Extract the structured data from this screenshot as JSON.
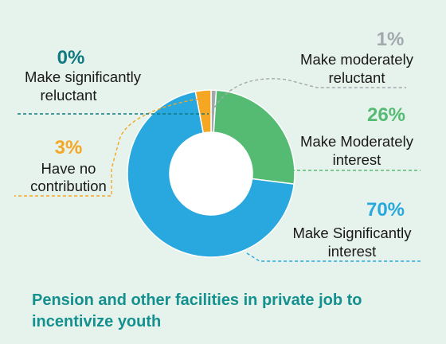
{
  "chart_data": {
    "type": "pie",
    "donut": true,
    "title": "Pension and other facilities in private job to incentivize youth",
    "slices": [
      {
        "percent_label": "1%",
        "label_lines": [
          "Make moderately",
          "reluctant"
        ],
        "value": 1,
        "color": "#a3a8ad"
      },
      {
        "percent_label": "26%",
        "label_lines": [
          "Make Moderately",
          "interest"
        ],
        "value": 26,
        "color": "#55bb73"
      },
      {
        "percent_label": "70%",
        "label_lines": [
          "Make Significantly",
          "interest"
        ],
        "value": 70,
        "color": "#29a8e0"
      },
      {
        "percent_label": "3%",
        "label_lines": [
          "Have no",
          "contribution"
        ],
        "value": 3,
        "color": "#f5a623"
      },
      {
        "percent_label": "0%",
        "label_lines": [
          "Make significantly",
          "reluctant"
        ],
        "value": 0,
        "color": "#0f7a80"
      }
    ]
  }
}
